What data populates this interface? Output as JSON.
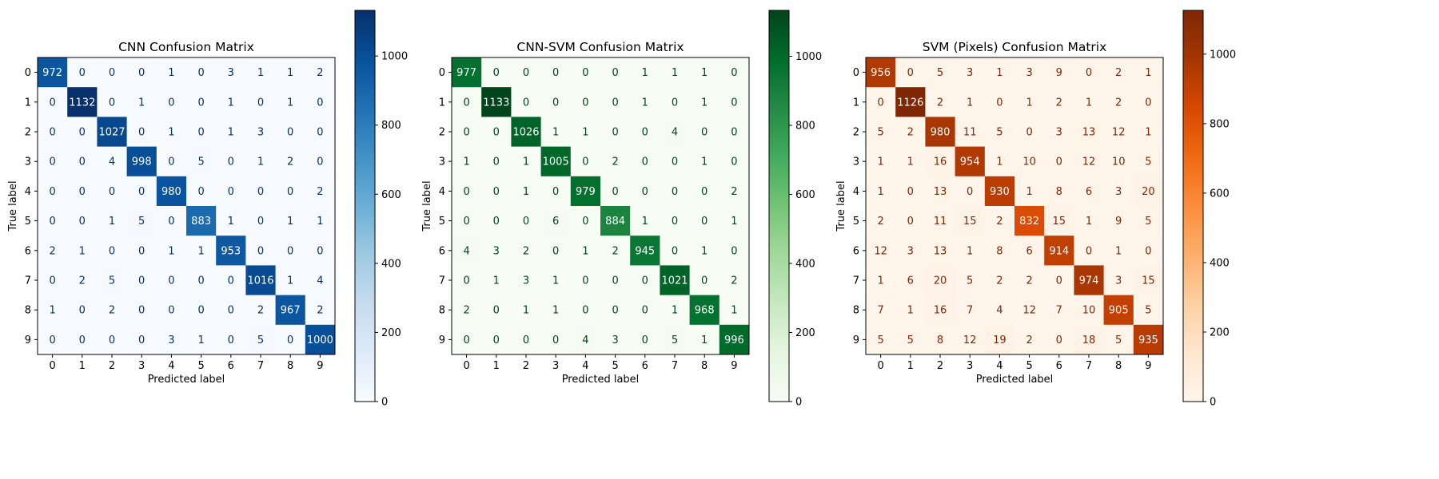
{
  "chart_data": [
    {
      "type": "heatmap",
      "title": "CNN Confusion Matrix",
      "xlabel": "Predicted label",
      "ylabel": "True label",
      "colormap": "Blues",
      "colors": [
        "#f7fbff",
        "#deebf7",
        "#c6dbef",
        "#9ecae1",
        "#6baed6",
        "#4292c6",
        "#2171b5",
        "#08519c",
        "#08306b"
      ],
      "x_ticks": [
        "0",
        "1",
        "2",
        "3",
        "4",
        "5",
        "6",
        "7",
        "8",
        "9"
      ],
      "y_ticks": [
        "0",
        "1",
        "2",
        "3",
        "4",
        "5",
        "6",
        "7",
        "8",
        "9"
      ],
      "vmin": 0,
      "vmax": 1132,
      "colorbar_ticks": [
        "0",
        "200",
        "400",
        "600",
        "800",
        "1000"
      ],
      "matrix": [
        [
          972,
          0,
          0,
          0,
          1,
          0,
          3,
          1,
          1,
          2
        ],
        [
          0,
          1132,
          0,
          1,
          0,
          0,
          1,
          0,
          1,
          0
        ],
        [
          0,
          0,
          1027,
          0,
          1,
          0,
          1,
          3,
          0,
          0
        ],
        [
          0,
          0,
          4,
          998,
          0,
          5,
          0,
          1,
          2,
          0
        ],
        [
          0,
          0,
          0,
          0,
          980,
          0,
          0,
          0,
          0,
          2
        ],
        [
          0,
          0,
          1,
          5,
          0,
          883,
          1,
          0,
          1,
          1
        ],
        [
          2,
          1,
          0,
          0,
          1,
          1,
          953,
          0,
          0,
          0
        ],
        [
          0,
          2,
          5,
          0,
          0,
          0,
          0,
          1016,
          1,
          4
        ],
        [
          1,
          0,
          2,
          0,
          0,
          0,
          0,
          2,
          967,
          2
        ],
        [
          0,
          0,
          0,
          0,
          3,
          1,
          0,
          5,
          0,
          1000
        ]
      ]
    },
    {
      "type": "heatmap",
      "title": "CNN-SVM Confusion Matrix",
      "xlabel": "Predicted label",
      "ylabel": "True label",
      "colormap": "Greens",
      "colors": [
        "#f7fcf5",
        "#e5f5e0",
        "#c7e9c0",
        "#a1d99b",
        "#74c476",
        "#41ab5d",
        "#238b45",
        "#006d2c",
        "#00441b"
      ],
      "x_ticks": [
        "0",
        "1",
        "2",
        "3",
        "4",
        "5",
        "6",
        "7",
        "8",
        "9"
      ],
      "y_ticks": [
        "0",
        "1",
        "2",
        "3",
        "4",
        "5",
        "6",
        "7",
        "8",
        "9"
      ],
      "vmin": 0,
      "vmax": 1133,
      "colorbar_ticks": [
        "0",
        "200",
        "400",
        "600",
        "800",
        "1000"
      ],
      "matrix": [
        [
          977,
          0,
          0,
          0,
          0,
          0,
          1,
          1,
          1,
          0
        ],
        [
          0,
          1133,
          0,
          0,
          0,
          0,
          1,
          0,
          1,
          0
        ],
        [
          0,
          0,
          1026,
          1,
          1,
          0,
          0,
          4,
          0,
          0
        ],
        [
          1,
          0,
          1,
          1005,
          0,
          2,
          0,
          0,
          1,
          0
        ],
        [
          0,
          0,
          1,
          0,
          979,
          0,
          0,
          0,
          0,
          2
        ],
        [
          0,
          0,
          0,
          6,
          0,
          884,
          1,
          0,
          0,
          1
        ],
        [
          4,
          3,
          2,
          0,
          1,
          2,
          945,
          0,
          1,
          0
        ],
        [
          0,
          1,
          3,
          1,
          0,
          0,
          0,
          1021,
          0,
          2
        ],
        [
          2,
          0,
          1,
          1,
          0,
          0,
          0,
          1,
          968,
          1
        ],
        [
          0,
          0,
          0,
          0,
          4,
          3,
          0,
          5,
          1,
          996
        ]
      ]
    },
    {
      "type": "heatmap",
      "title": "SVM (Pixels) Confusion Matrix",
      "xlabel": "Predicted label",
      "ylabel": "True label",
      "colormap": "Oranges",
      "colors": [
        "#fff5eb",
        "#fee6ce",
        "#fdd0a2",
        "#fdae6b",
        "#fd8d3c",
        "#f16913",
        "#d94801",
        "#a63603",
        "#7f2704"
      ],
      "x_ticks": [
        "0",
        "1",
        "2",
        "3",
        "4",
        "5",
        "6",
        "7",
        "8",
        "9"
      ],
      "y_ticks": [
        "0",
        "1",
        "2",
        "3",
        "4",
        "5",
        "6",
        "7",
        "8",
        "9"
      ],
      "vmin": 0,
      "vmax": 1126,
      "colorbar_ticks": [
        "0",
        "200",
        "400",
        "600",
        "800",
        "1000"
      ],
      "matrix": [
        [
          956,
          0,
          5,
          3,
          1,
          3,
          9,
          0,
          2,
          1
        ],
        [
          0,
          1126,
          2,
          1,
          0,
          1,
          2,
          1,
          2,
          0
        ],
        [
          5,
          2,
          980,
          11,
          5,
          0,
          3,
          13,
          12,
          1
        ],
        [
          1,
          1,
          16,
          954,
          1,
          10,
          0,
          12,
          10,
          5
        ],
        [
          1,
          0,
          13,
          0,
          930,
          1,
          8,
          6,
          3,
          20
        ],
        [
          2,
          0,
          11,
          15,
          2,
          832,
          15,
          1,
          9,
          5
        ],
        [
          12,
          3,
          13,
          1,
          8,
          6,
          914,
          0,
          1,
          0
        ],
        [
          1,
          6,
          20,
          5,
          2,
          2,
          0,
          974,
          3,
          15
        ],
        [
          7,
          1,
          16,
          7,
          4,
          12,
          7,
          10,
          905,
          5
        ],
        [
          5,
          5,
          8,
          12,
          19,
          2,
          0,
          18,
          5,
          935
        ]
      ]
    }
  ]
}
